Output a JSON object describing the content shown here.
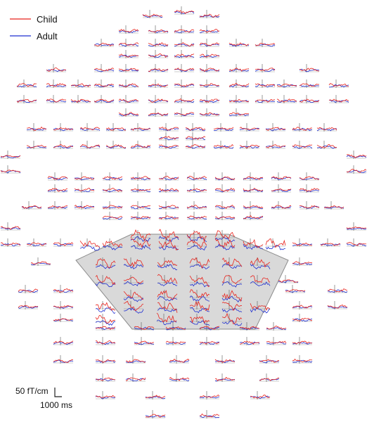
{
  "chart_data": {
    "type": "line",
    "series": [
      {
        "name": "Child",
        "color": "#e8231c"
      },
      {
        "name": "Adult",
        "color": "#1f2fd0"
      }
    ],
    "legend_position": "top-left",
    "region_of_interest": {
      "fill": "#d9d9d9",
      "stroke": "#8c8c8c"
    },
    "scale_bar": {
      "amplitude_label": "50 fT/cm",
      "time_label": "1000 ms",
      "amplitude_value": 50,
      "amplitude_unit": "fT/cm",
      "time_value": 1000,
      "time_unit": "ms"
    },
    "grid": false,
    "sensor_layout": "whole-head MEG planar gradiometer array (~300 sensors)"
  }
}
